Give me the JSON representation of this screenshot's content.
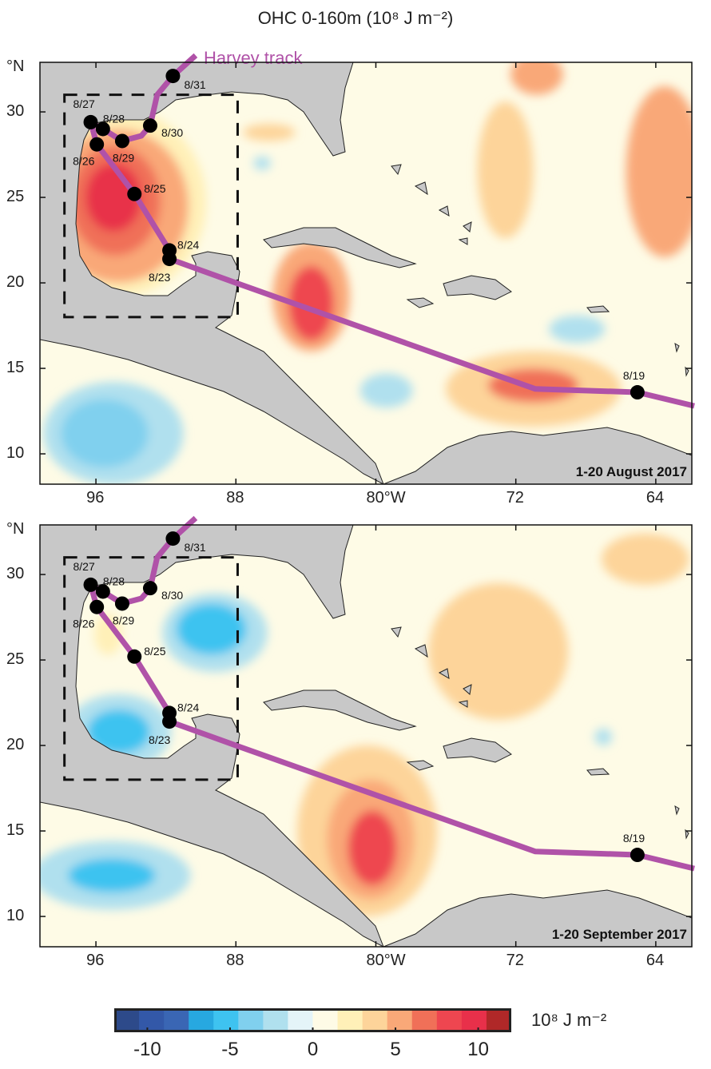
{
  "title": "OHC  0-160m  (10⁸ J m⁻²)",
  "chart_data": {
    "type": "heatmap",
    "title": "OHC  0-160m  (10⁸ J m⁻²)",
    "lon_range": [
      99.2,
      61.8
    ],
    "lat_range": [
      8.2,
      32.9
    ],
    "x_ticks": [
      "96",
      "88",
      "80°W",
      "72",
      "64"
    ],
    "x_tick_values": [
      96,
      88,
      80,
      72,
      64
    ],
    "y_ticks": [
      "30",
      "25",
      "20",
      "15",
      "10"
    ],
    "y_tick_values": [
      30,
      25,
      20,
      15,
      10
    ],
    "y_unit_label": "°N",
    "colorbar": {
      "min": -12,
      "max": 12,
      "step": 1.5,
      "ticks": [
        "-10",
        "-5",
        "0",
        "5",
        "10"
      ],
      "tick_values": [
        -10,
        -5,
        0,
        5,
        10
      ],
      "units": "10⁸ J m⁻²",
      "colors": [
        "#2d4a8a",
        "#3358a8",
        "#3a66b4",
        "#27a8e0",
        "#3ec3f0",
        "#80d0ee",
        "#b0e0ee",
        "#e4f4f8",
        "#fefbe6",
        "#fff0b8",
        "#fdd49a",
        "#f9a878",
        "#f07058",
        "#ee4650",
        "#e8304a",
        "#b02828"
      ]
    },
    "land_color": "#c8c8c8",
    "track": {
      "name": "Harvey track",
      "color": "#b052a8",
      "path": [
        [
          61.8,
          12.8
        ],
        [
          65.05,
          13.6
        ],
        [
          70.9,
          13.8
        ],
        [
          88,
          20
        ],
        [
          91.8,
          21.4
        ],
        [
          91.8,
          21.9
        ],
        [
          93.8,
          25.2
        ],
        [
          95.95,
          28.1
        ],
        [
          96.3,
          29.4
        ],
        [
          95.6,
          29.0
        ],
        [
          94.5,
          28.3
        ],
        [
          93.4,
          28.6
        ],
        [
          92.9,
          29.2
        ],
        [
          92.5,
          31
        ],
        [
          91.6,
          32.1
        ],
        [
          90.3,
          33.3
        ]
      ],
      "points": [
        {
          "label": "8/19",
          "lon": 65.05,
          "lat": 13.6
        },
        {
          "label": "8/23",
          "lon": 91.8,
          "lat": 21.4
        },
        {
          "label": "8/24",
          "lon": 91.8,
          "lat": 21.9
        },
        {
          "label": "8/25",
          "lon": 93.8,
          "lat": 25.2
        },
        {
          "label": "8/26",
          "lon": 95.95,
          "lat": 28.1
        },
        {
          "label": "8/27",
          "lon": 96.3,
          "lat": 29.4
        },
        {
          "label": "8/28",
          "lon": 95.6,
          "lat": 29.0
        },
        {
          "label": "8/29",
          "lon": 94.5,
          "lat": 28.3
        },
        {
          "label": "8/30",
          "lon": 92.9,
          "lat": 29.2
        },
        {
          "label": "8/31",
          "lon": 91.6,
          "lat": 32.1
        }
      ]
    },
    "box": {
      "lon": [
        97.8,
        87.9
      ],
      "lat": [
        18.0,
        31.0
      ]
    },
    "panels": [
      {
        "label": "1-20 August 2017",
        "background_value": 1,
        "features": [
          {
            "lon": 94.7,
            "lat": 24.7,
            "rlon": 5,
            "rlat": 5.5,
            "value": 2.5
          },
          {
            "lon": 94.7,
            "lat": 24.5,
            "rlon": 4,
            "rlat": 4.5,
            "value": 5
          },
          {
            "lon": 94.9,
            "lat": 24.8,
            "rlon": 2.6,
            "rlat": 3.2,
            "value": 7
          },
          {
            "lon": 95.0,
            "lat": 25.0,
            "rlon": 1.6,
            "rlat": 2.0,
            "value": 9
          },
          {
            "lon": 86.1,
            "lat": 28.8,
            "rlon": 1.5,
            "rlat": 0.5,
            "value": 4
          },
          {
            "lon": 83.7,
            "lat": 19.2,
            "rlon": 2.2,
            "rlat": 3.2,
            "value": 5
          },
          {
            "lon": 83.7,
            "lat": 18.8,
            "rlon": 1.3,
            "rlat": 2.2,
            "value": 8
          },
          {
            "lon": 71,
            "lat": 13.8,
            "rlon": 5,
            "rlat": 2.2,
            "value": 4
          },
          {
            "lon": 71,
            "lat": 14.0,
            "rlon": 2.6,
            "rlat": 1.0,
            "value": 7
          },
          {
            "lon": 72.6,
            "lat": 26.6,
            "rlon": 1.6,
            "rlat": 4,
            "value": 4
          },
          {
            "lon": 63.5,
            "lat": 26.5,
            "rlon": 2.2,
            "rlat": 5,
            "value": 5
          },
          {
            "lon": 70.8,
            "lat": 32.2,
            "rlon": 1.5,
            "rlat": 1.2,
            "value": 5
          },
          {
            "lon": 95.0,
            "lat": 11.2,
            "rlon": 4,
            "rlat": 3,
            "value": -2
          },
          {
            "lon": 95.5,
            "lat": 11.2,
            "rlon": 2.5,
            "rlat": 2,
            "value": -4
          },
          {
            "lon": 79.4,
            "lat": 13.7,
            "rlon": 1.5,
            "rlat": 1,
            "value": -3
          },
          {
            "lon": 68.5,
            "lat": 17.3,
            "rlon": 1.6,
            "rlat": 0.8,
            "value": -3
          },
          {
            "lon": 86.5,
            "lat": 27,
            "rlon": 0.5,
            "rlat": 0.4,
            "value": -2
          }
        ]
      },
      {
        "label": "1-20 September 2017",
        "background_value": 1,
        "features": [
          {
            "lon": 89.2,
            "lat": 26.6,
            "rlon": 3,
            "rlat": 2.3,
            "value": -2
          },
          {
            "lon": 89.4,
            "lat": 26.8,
            "rlon": 2,
            "rlat": 1.5,
            "value": -5
          },
          {
            "lon": 94.7,
            "lat": 20.8,
            "rlon": 3,
            "rlat": 2.2,
            "value": -2
          },
          {
            "lon": 94.7,
            "lat": 20.8,
            "rlon": 1.8,
            "rlat": 1.3,
            "value": -5
          },
          {
            "lon": 80.5,
            "lat": 15,
            "rlon": 4,
            "rlat": 5,
            "value": 3
          },
          {
            "lon": 80.3,
            "lat": 14.5,
            "rlon": 2.5,
            "rlat": 3.5,
            "value": 5
          },
          {
            "lon": 80.2,
            "lat": 14.0,
            "rlon": 1.4,
            "rlat": 2.2,
            "value": 8
          },
          {
            "lon": 95.1,
            "lat": 12.4,
            "rlon": 4.5,
            "rlat": 2,
            "value": -2
          },
          {
            "lon": 95.1,
            "lat": 12.4,
            "rlon": 2.5,
            "rlat": 1,
            "value": -5
          },
          {
            "lon": 73,
            "lat": 25.5,
            "rlon": 4,
            "rlat": 4,
            "value": 3
          },
          {
            "lon": 64.6,
            "lat": 30.9,
            "rlon": 2.5,
            "rlat": 1.5,
            "value": 4
          },
          {
            "lon": 67,
            "lat": 20.5,
            "rlon": 0.5,
            "rlat": 0.5,
            "value": -2
          },
          {
            "lon": 95.3,
            "lat": 26.5,
            "rlon": 0.8,
            "rlat": 1.2,
            "value": 2.5
          }
        ]
      }
    ]
  }
}
